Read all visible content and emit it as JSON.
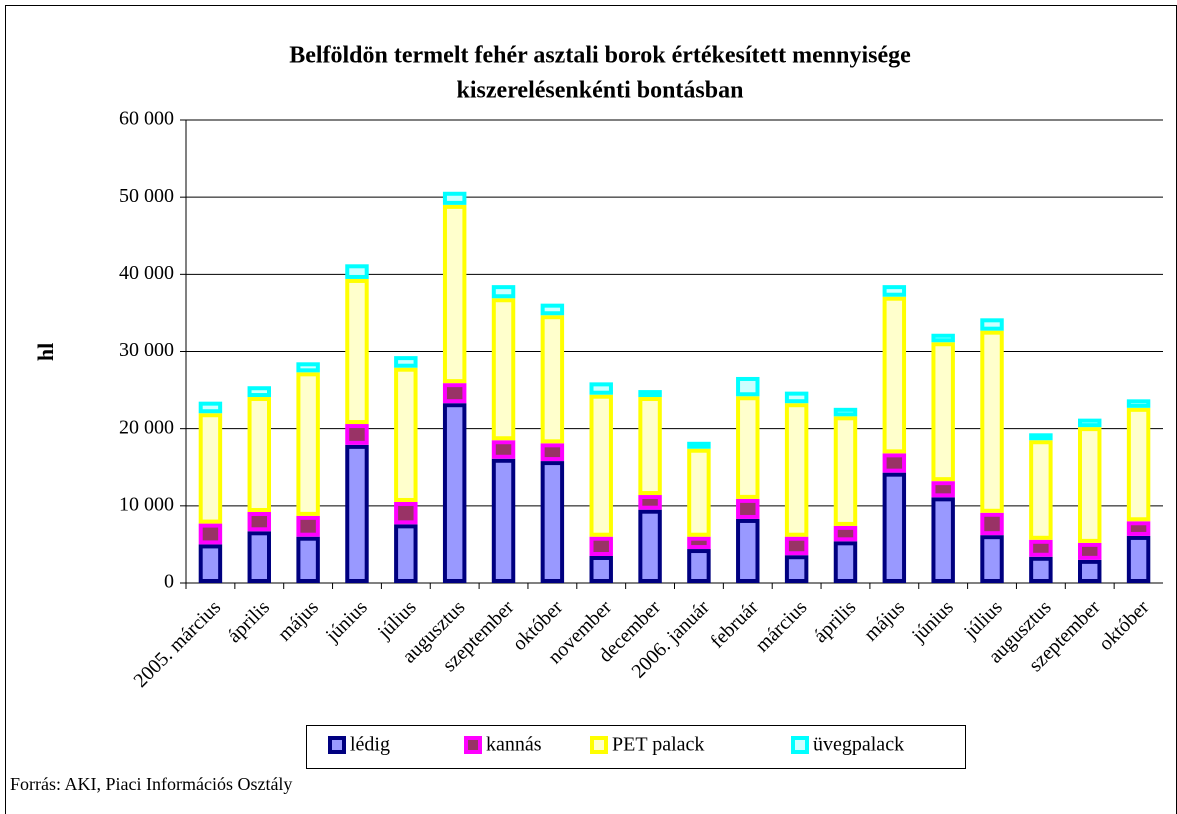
{
  "chart_data": {
    "type": "stacked_bar",
    "title": [
      "Belföldön termelt fehér asztali borok értékesített mennyisége",
      "kiszerelésenkénti bontásban"
    ],
    "y_label": "hl",
    "source": "Forrás: AKI, Piaci Információs Osztály",
    "categories": [
      "2005. március",
      "április",
      "május",
      "június",
      "július",
      "augusztus",
      "szeptember",
      "október",
      "november",
      "december",
      "2006. január",
      "február",
      "március",
      "április",
      "május",
      "június",
      "július",
      "augusztus",
      "szeptember",
      "október"
    ],
    "series": [
      {
        "name": "lédig",
        "color": "#9999ff",
        "stroke": "#000080",
        "values": [
          5000,
          6700,
          6000,
          17900,
          7600,
          23300,
          16100,
          15800,
          3500,
          9500,
          4400,
          8300,
          3600,
          5400,
          14300,
          11100,
          6200,
          3400,
          3000,
          6100
        ]
      },
      {
        "name": "kannás",
        "color": "#993366",
        "stroke": "#ff00ff",
        "values": [
          2700,
          2500,
          2700,
          2700,
          2900,
          2600,
          2400,
          2300,
          2500,
          1900,
          1600,
          2600,
          2400,
          2000,
          2500,
          2100,
          2900,
          2200,
          2200,
          1900
        ]
      },
      {
        "name": "PET palack",
        "color": "#ffffcc",
        "stroke": "#ffff00",
        "values": [
          14300,
          14900,
          18600,
          18800,
          17400,
          23100,
          18400,
          16600,
          18400,
          12700,
          11400,
          13300,
          17300,
          14200,
          20300,
          18000,
          23600,
          12900,
          15000,
          14700
        ]
      },
      {
        "name": "üvegpalack",
        "color": "#ccffff",
        "stroke": "#00ffff",
        "values": [
          1500,
          1400,
          1300,
          1900,
          1500,
          1700,
          1700,
          1500,
          1600,
          900,
          900,
          2500,
          1500,
          1100,
          1500,
          1100,
          1600,
          900,
          1100,
          1100
        ]
      }
    ],
    "ylim": [
      0,
      60000
    ],
    "yticks": [
      {
        "value": 0,
        "label": "0"
      },
      {
        "value": 10000,
        "label": "10 000"
      },
      {
        "value": 20000,
        "label": "20 000"
      },
      {
        "value": 30000,
        "label": "30 000"
      },
      {
        "value": 40000,
        "label": "40 000"
      },
      {
        "value": 50000,
        "label": "50 000"
      },
      {
        "value": 60000,
        "label": "60 000"
      }
    ],
    "grid": true,
    "legend": "bottom"
  }
}
